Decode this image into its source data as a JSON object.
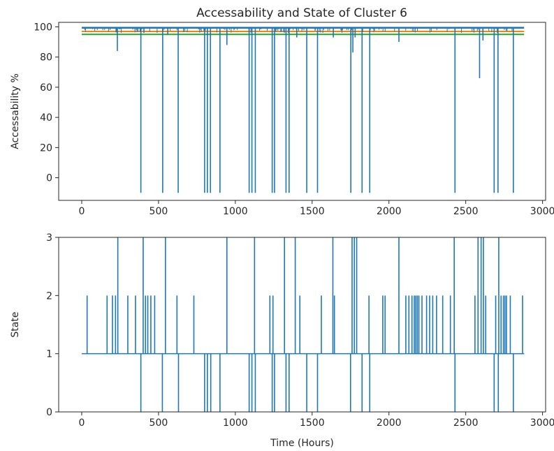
{
  "chart_data": [
    {
      "type": "line",
      "title": "Accessability and State of Cluster 6",
      "xlabel": "",
      "ylabel": "Accessability %",
      "xlim": [
        -150,
        3020
      ],
      "ylim": [
        -15,
        103
      ],
      "xticks": [
        0,
        500,
        1000,
        1500,
        2000,
        2500,
        3000
      ],
      "yticks": [
        0,
        20,
        40,
        60,
        80,
        100
      ],
      "grid": false,
      "legend": "none",
      "x_range": [
        0,
        2880
      ],
      "baseline": 100,
      "thresholds": [
        {
          "value": 97,
          "color": "#ff7f0e"
        },
        {
          "value": 95,
          "color": "#2ca02c"
        }
      ],
      "drops": [
        {
          "x": 232,
          "y": 84
        },
        {
          "x": 385,
          "y": -10
        },
        {
          "x": 405,
          "y": 96
        },
        {
          "x": 527,
          "y": -10
        },
        {
          "x": 560,
          "y": 95
        },
        {
          "x": 628,
          "y": -10
        },
        {
          "x": 800,
          "y": -10
        },
        {
          "x": 818,
          "y": -10
        },
        {
          "x": 838,
          "y": -10
        },
        {
          "x": 900,
          "y": -10
        },
        {
          "x": 945,
          "y": 88
        },
        {
          "x": 1090,
          "y": -10
        },
        {
          "x": 1108,
          "y": -10
        },
        {
          "x": 1130,
          "y": -10
        },
        {
          "x": 1240,
          "y": -10
        },
        {
          "x": 1255,
          "y": -10
        },
        {
          "x": 1330,
          "y": -10
        },
        {
          "x": 1350,
          "y": -10
        },
        {
          "x": 1400,
          "y": 93
        },
        {
          "x": 1465,
          "y": -10
        },
        {
          "x": 1535,
          "y": -10
        },
        {
          "x": 1638,
          "y": 93
        },
        {
          "x": 1752,
          "y": -10
        },
        {
          "x": 1765,
          "y": 83
        },
        {
          "x": 1780,
          "y": 93
        },
        {
          "x": 1825,
          "y": -10
        },
        {
          "x": 1875,
          "y": -10
        },
        {
          "x": 2065,
          "y": 90
        },
        {
          "x": 2430,
          "y": -10
        },
        {
          "x": 2590,
          "y": 66
        },
        {
          "x": 2612,
          "y": 91
        },
        {
          "x": 2685,
          "y": -10
        },
        {
          "x": 2710,
          "y": -10
        },
        {
          "x": 2810,
          "y": -10
        }
      ]
    },
    {
      "type": "line",
      "title": "",
      "xlabel": "Time (Hours)",
      "ylabel": "State",
      "xlim": [
        -150,
        3020
      ],
      "ylim": [
        0,
        3
      ],
      "xticks": [
        0,
        500,
        1000,
        1500,
        2000,
        2500,
        3000
      ],
      "yticks": [
        0,
        1,
        2,
        3
      ],
      "grid": false,
      "legend": "none",
      "x_range": [
        0,
        2880
      ],
      "baseline": 1,
      "spikes": [
        {
          "x": 35,
          "y": 2
        },
        {
          "x": 165,
          "y": 2
        },
        {
          "x": 200,
          "y": 2
        },
        {
          "x": 220,
          "y": 2
        },
        {
          "x": 235,
          "y": 3
        },
        {
          "x": 300,
          "y": 2
        },
        {
          "x": 350,
          "y": 2
        },
        {
          "x": 385,
          "y": 0
        },
        {
          "x": 400,
          "y": 3
        },
        {
          "x": 415,
          "y": 2
        },
        {
          "x": 430,
          "y": 2
        },
        {
          "x": 450,
          "y": 2
        },
        {
          "x": 475,
          "y": 2
        },
        {
          "x": 525,
          "y": 0
        },
        {
          "x": 545,
          "y": 3
        },
        {
          "x": 620,
          "y": 2
        },
        {
          "x": 630,
          "y": 0
        },
        {
          "x": 730,
          "y": 2
        },
        {
          "x": 800,
          "y": 0
        },
        {
          "x": 818,
          "y": 0
        },
        {
          "x": 840,
          "y": 0
        },
        {
          "x": 900,
          "y": 0
        },
        {
          "x": 945,
          "y": 3
        },
        {
          "x": 1090,
          "y": 0
        },
        {
          "x": 1108,
          "y": 0
        },
        {
          "x": 1125,
          "y": 3
        },
        {
          "x": 1130,
          "y": 0
        },
        {
          "x": 1225,
          "y": 2
        },
        {
          "x": 1240,
          "y": 0
        },
        {
          "x": 1245,
          "y": 2
        },
        {
          "x": 1255,
          "y": 0
        },
        {
          "x": 1320,
          "y": 3
        },
        {
          "x": 1330,
          "y": 0
        },
        {
          "x": 1350,
          "y": 0
        },
        {
          "x": 1390,
          "y": 3
        },
        {
          "x": 1420,
          "y": 2
        },
        {
          "x": 1465,
          "y": 0
        },
        {
          "x": 1535,
          "y": 0
        },
        {
          "x": 1560,
          "y": 2
        },
        {
          "x": 1635,
          "y": 3
        },
        {
          "x": 1645,
          "y": 2
        },
        {
          "x": 1750,
          "y": 0
        },
        {
          "x": 1760,
          "y": 3
        },
        {
          "x": 1775,
          "y": 3
        },
        {
          "x": 1790,
          "y": 3
        },
        {
          "x": 1825,
          "y": 0
        },
        {
          "x": 1870,
          "y": 2
        },
        {
          "x": 1875,
          "y": 0
        },
        {
          "x": 1960,
          "y": 2
        },
        {
          "x": 1975,
          "y": 2
        },
        {
          "x": 2065,
          "y": 3
        },
        {
          "x": 2110,
          "y": 2
        },
        {
          "x": 2130,
          "y": 2
        },
        {
          "x": 2150,
          "y": 2
        },
        {
          "x": 2165,
          "y": 2
        },
        {
          "x": 2175,
          "y": 2
        },
        {
          "x": 2185,
          "y": 2
        },
        {
          "x": 2195,
          "y": 2
        },
        {
          "x": 2215,
          "y": 2
        },
        {
          "x": 2245,
          "y": 2
        },
        {
          "x": 2265,
          "y": 2
        },
        {
          "x": 2285,
          "y": 2
        },
        {
          "x": 2310,
          "y": 2
        },
        {
          "x": 2350,
          "y": 2
        },
        {
          "x": 2400,
          "y": 2
        },
        {
          "x": 2425,
          "y": 3
        },
        {
          "x": 2430,
          "y": 0
        },
        {
          "x": 2560,
          "y": 2
        },
        {
          "x": 2580,
          "y": 3
        },
        {
          "x": 2600,
          "y": 3
        },
        {
          "x": 2615,
          "y": 3
        },
        {
          "x": 2630,
          "y": 2
        },
        {
          "x": 2685,
          "y": 0
        },
        {
          "x": 2695,
          "y": 2
        },
        {
          "x": 2712,
          "y": 0
        },
        {
          "x": 2715,
          "y": 3
        },
        {
          "x": 2730,
          "y": 2
        },
        {
          "x": 2745,
          "y": 2
        },
        {
          "x": 2755,
          "y": 2
        },
        {
          "x": 2765,
          "y": 2
        },
        {
          "x": 2790,
          "y": 2
        },
        {
          "x": 2810,
          "y": 0
        },
        {
          "x": 2870,
          "y": 2
        }
      ]
    }
  ],
  "colors": {
    "series": "#1f77b4",
    "axis": "#262626"
  }
}
